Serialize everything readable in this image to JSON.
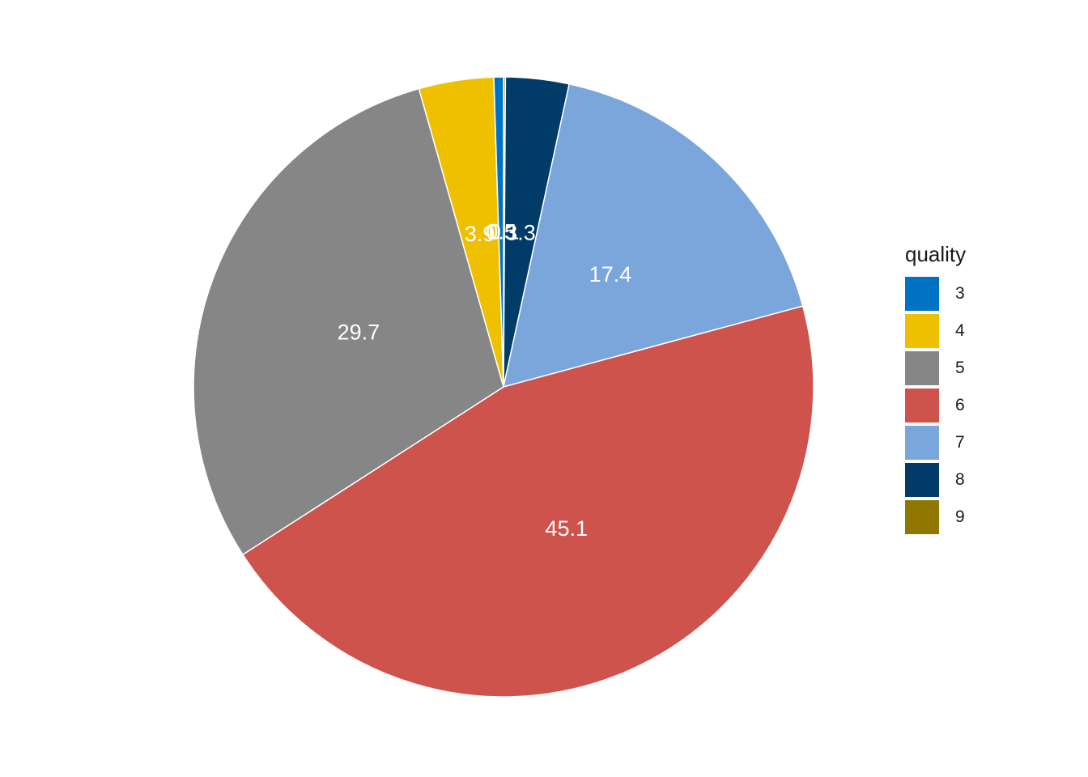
{
  "chart_data": {
    "type": "pie",
    "legend_title": "quality",
    "legend_position": "right",
    "categories": [
      "3",
      "4",
      "5",
      "6",
      "7",
      "8",
      "9"
    ],
    "values": [
      0.5,
      3.9,
      29.7,
      45.1,
      17.4,
      3.3,
      0.1
    ],
    "labels": [
      "0.5",
      "3.9",
      "29.7",
      "45.1",
      "17.4",
      "3.3",
      "0.1"
    ],
    "colors": [
      "#0072C3",
      "#EFC000",
      "#868686",
      "#CD534C",
      "#7AA6DC",
      "#003C67",
      "#8F7700"
    ],
    "slice_order_clockwise_from_top": [
      "9",
      "8",
      "7",
      "6",
      "5",
      "4",
      "3"
    ]
  }
}
